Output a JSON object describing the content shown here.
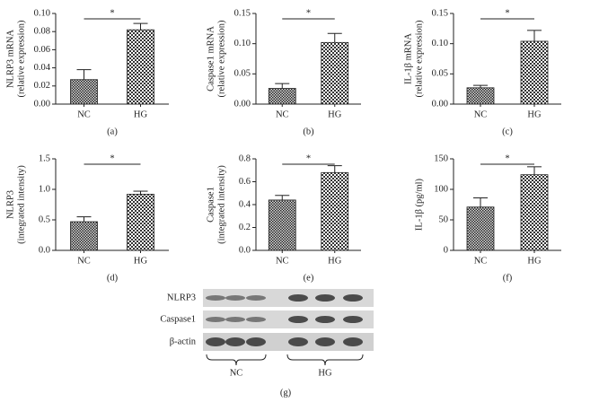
{
  "chart_data": [
    {
      "type": "bar",
      "ylabel": [
        "NLRP3 mRNA",
        "(relative expression)"
      ],
      "categories": [
        "NC",
        "HG"
      ],
      "values": [
        0.027,
        0.082
      ],
      "errors": [
        0.011,
        0.007
      ],
      "significance": "*",
      "caption": "(a)",
      "ylim": [
        0,
        0.1
      ],
      "yticks": [
        {
          "value": 0,
          "label": "0.00"
        },
        {
          "value": 0.02,
          "label": "0.02"
        },
        {
          "value": 0.04,
          "label": "0.04"
        },
        {
          "value": 0.06,
          "label": "0.06"
        },
        {
          "value": 0.08,
          "label": "0.08"
        },
        {
          "value": 0.1,
          "label": "0.10"
        }
      ]
    },
    {
      "type": "bar",
      "ylabel": [
        "Caspase1 mRNA",
        "(relative expression)"
      ],
      "categories": [
        "NC",
        "HG"
      ],
      "values": [
        0.026,
        0.102
      ],
      "errors": [
        0.008,
        0.015
      ],
      "significance": "*",
      "caption": "(b)",
      "ylim": [
        0,
        0.15
      ],
      "yticks": [
        {
          "value": 0,
          "label": "0.00"
        },
        {
          "value": 0.05,
          "label": "0.05"
        },
        {
          "value": 0.1,
          "label": "0.10"
        },
        {
          "value": 0.15,
          "label": "0.15"
        }
      ]
    },
    {
      "type": "bar",
      "ylabel": [
        "IL-1β mRNA",
        "(relative expression)"
      ],
      "categories": [
        "NC",
        "HG"
      ],
      "values": [
        0.027,
        0.104
      ],
      "errors": [
        0.004,
        0.018
      ],
      "significance": "*",
      "caption": "(c)",
      "ylim": [
        0,
        0.15
      ],
      "yticks": [
        {
          "value": 0,
          "label": "0.00"
        },
        {
          "value": 0.05,
          "label": "0.05"
        },
        {
          "value": 0.1,
          "label": "0.10"
        },
        {
          "value": 0.15,
          "label": "0.15"
        }
      ]
    },
    {
      "type": "bar",
      "ylabel": [
        "NLRP3",
        "(integrated intensity)"
      ],
      "categories": [
        "NC",
        "HG"
      ],
      "values": [
        0.47,
        0.92
      ],
      "errors": [
        0.08,
        0.05
      ],
      "significance": "*",
      "caption": "(d)",
      "ylim": [
        0,
        1.5
      ],
      "yticks": [
        {
          "value": 0,
          "label": "0.0"
        },
        {
          "value": 0.5,
          "label": "0.5"
        },
        {
          "value": 1,
          "label": "1.0"
        },
        {
          "value": 1.5,
          "label": "1.5"
        }
      ]
    },
    {
      "type": "bar",
      "ylabel": [
        "Caspase1",
        "(integrated intensity)"
      ],
      "categories": [
        "NC",
        "HG"
      ],
      "values": [
        0.44,
        0.68
      ],
      "errors": [
        0.04,
        0.06
      ],
      "significance": "*",
      "caption": "(e)",
      "ylim": [
        0,
        0.8
      ],
      "yticks": [
        {
          "value": 0,
          "label": "0.0"
        },
        {
          "value": 0.2,
          "label": "0.2"
        },
        {
          "value": 0.4,
          "label": "0.4"
        },
        {
          "value": 0.6,
          "label": "0.6"
        },
        {
          "value": 0.8,
          "label": "0.8"
        }
      ]
    },
    {
      "type": "bar",
      "ylabel": [
        "IL-1β (pg/ml)"
      ],
      "categories": [
        "NC",
        "HG"
      ],
      "values": [
        71,
        124
      ],
      "errors": [
        15,
        13
      ],
      "significance": "*",
      "caption": "(f)",
      "ylim": [
        0,
        150
      ],
      "yticks": [
        0,
        50,
        100,
        150
      ]
    }
  ],
  "blot": {
    "rows": [
      "NLRP3",
      "Caspase1",
      "β-actin"
    ],
    "groups": [
      "NC",
      "HG"
    ],
    "caption": "(g)"
  }
}
